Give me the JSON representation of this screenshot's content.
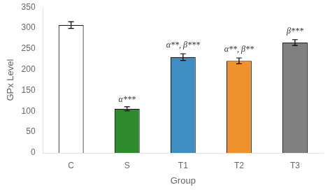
{
  "chart_data": {
    "type": "bar",
    "categories": [
      "C",
      "S",
      "T1",
      "T2",
      "T3"
    ],
    "values": [
      307,
      106,
      230,
      221,
      265
    ],
    "errors": [
      8,
      5,
      8,
      7,
      7
    ],
    "colors": [
      "#ffffff",
      "#2e8b2e",
      "#3e8ec4",
      "#f0922b",
      "#808080"
    ],
    "xlabel": "Group",
    "ylabel": "GPx Level",
    "ylim": [
      0,
      350
    ],
    "yticks": [
      0,
      50,
      100,
      150,
      200,
      250,
      300,
      350
    ],
    "grid": false,
    "annotations": [
      {
        "text": "α***",
        "x": "S",
        "y": 118
      },
      {
        "text": "α**, β***",
        "x": "T1",
        "y": 248
      },
      {
        "text": "α**, β**",
        "x": "T2",
        "y": 238
      },
      {
        "text": "β***",
        "x": "T3",
        "y": 282
      }
    ]
  }
}
